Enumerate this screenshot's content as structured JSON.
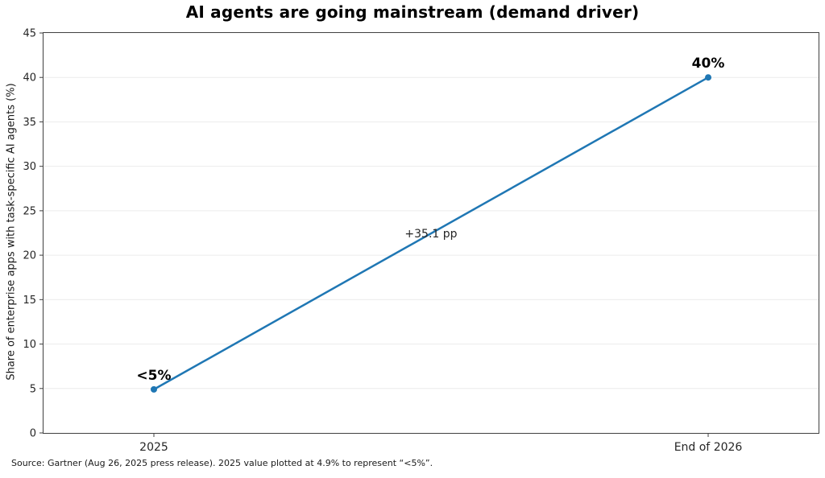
{
  "chart_data": {
    "type": "line",
    "title": "AI agents are going mainstream (demand driver)",
    "xlabel": "",
    "ylabel": "Share of enterprise apps with task-specific AI agents (%)",
    "categories": [
      "2025",
      "End of 2026"
    ],
    "values": [
      4.9,
      40
    ],
    "point_labels": [
      "<5%",
      "40%"
    ],
    "midpoint_annotation": "+35.1 pp",
    "ylim": [
      0,
      45
    ],
    "yticks": [
      0,
      5,
      10,
      15,
      20,
      25,
      30,
      35,
      40,
      45
    ],
    "x_positions": [
      0.1424,
      0.8576
    ],
    "grid": "horizontal",
    "legend": "none",
    "line_color": "#1f77b4",
    "marker_color": "#1f77b4",
    "grid_color": "#ececec",
    "axis_color": "#404040",
    "tick_label_color": "#262626",
    "annotation_color": "#262626",
    "point_label_color": "#000000"
  },
  "source_note": "Source: Gartner (Aug 26, 2025 press release). 2025 value plotted at 4.9% to represent “<5%”."
}
